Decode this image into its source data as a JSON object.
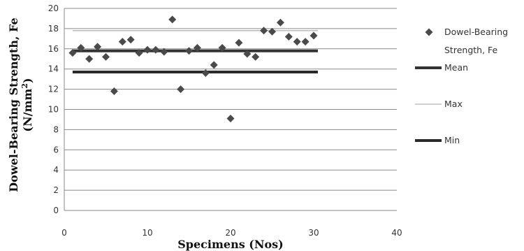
{
  "chart_data": {
    "type": "scatter",
    "title": "",
    "xlabel": "Specimens (Nos)",
    "ylabel_line1": "Dowel-Bearing Strength, Fe",
    "ylabel_line2_prefix": "(N/mm",
    "ylabel_line2_sup": "2",
    "ylabel_line2_suffix": ")",
    "xlim": [
      0,
      40
    ],
    "ylim": [
      0,
      20
    ],
    "x_ticks": [
      0,
      10,
      20,
      30,
      40
    ],
    "y_ticks": [
      0,
      2,
      4,
      6,
      8,
      10,
      12,
      14,
      16,
      18,
      20
    ],
    "grid": "horizontal",
    "legend_position": "right",
    "series": [
      {
        "name": "Dowel-Bearing Strength, Fe",
        "legend_lines": [
          "Dowel-Bearing",
          "Strength, Fe"
        ],
        "kind": "points",
        "marker": "diamond",
        "color": "#4a4a4a",
        "x": [
          1,
          2,
          3,
          4,
          5,
          6,
          7,
          8,
          9,
          10,
          11,
          12,
          13,
          14,
          15,
          16,
          17,
          18,
          19,
          20,
          21,
          22,
          23,
          24,
          25,
          26,
          27,
          28,
          29,
          30
        ],
        "y": [
          15.6,
          16.1,
          15.0,
          16.2,
          15.2,
          11.8,
          16.7,
          16.9,
          15.6,
          15.9,
          15.9,
          15.7,
          18.9,
          12.0,
          15.8,
          16.1,
          13.6,
          14.4,
          16.1,
          9.1,
          16.6,
          15.5,
          15.2,
          17.8,
          17.7,
          18.6,
          17.2,
          16.7,
          16.7,
          17.3
        ]
      },
      {
        "name": "Mean",
        "kind": "hline",
        "color": "#333333",
        "x": [
          1,
          30.5
        ],
        "y": [
          15.8,
          15.8
        ]
      },
      {
        "name": "Max",
        "kind": "hline",
        "color": "#bdbdbd",
        "x": [
          1,
          30.5
        ],
        "y": [
          17.8,
          17.8
        ]
      },
      {
        "name": "Min",
        "kind": "hline",
        "color": "#2a2a2a",
        "x": [
          1,
          30.5
        ],
        "y": [
          13.7,
          13.7
        ]
      }
    ]
  }
}
